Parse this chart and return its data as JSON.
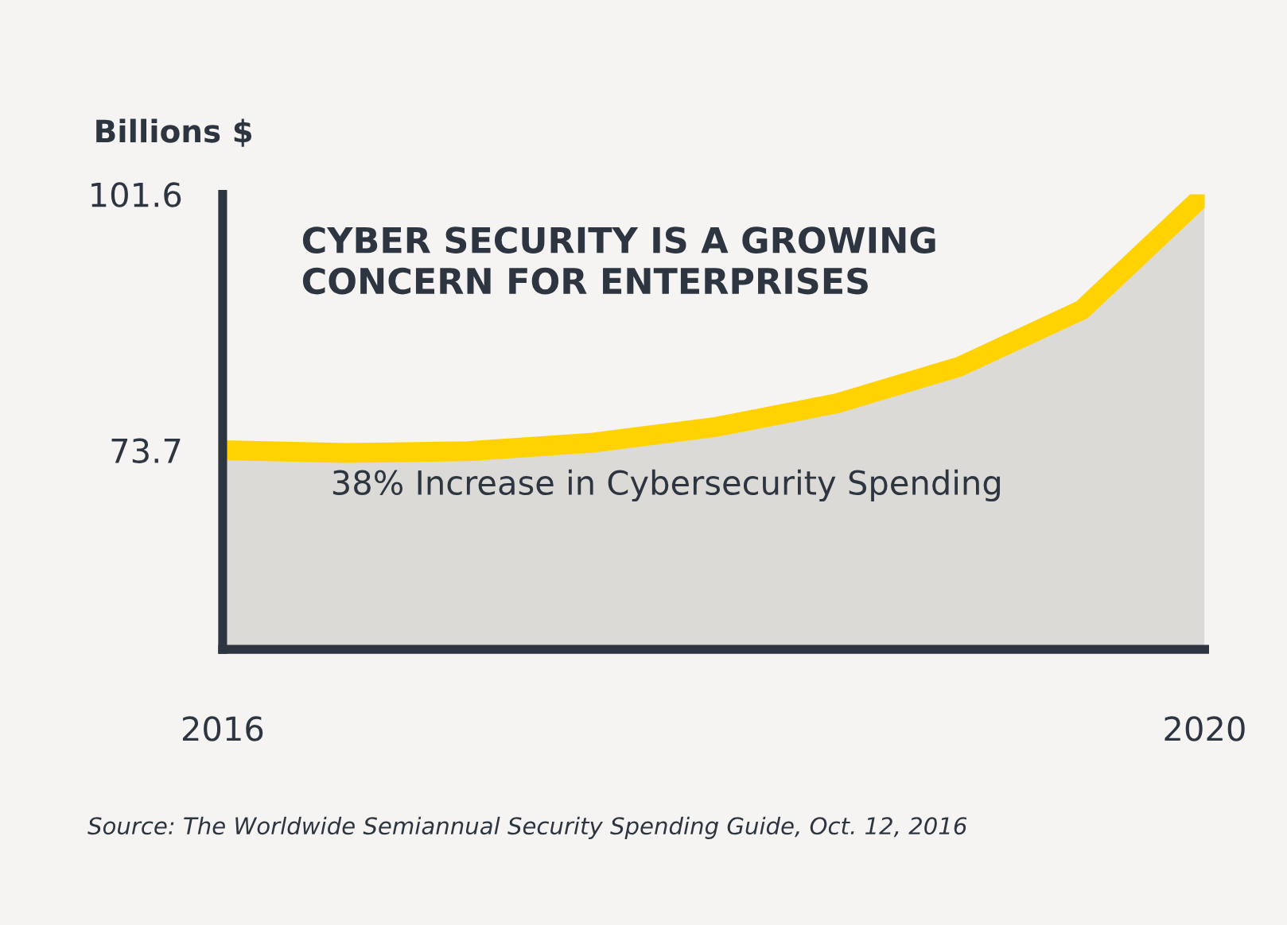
{
  "chart_data": {
    "type": "area",
    "title": "CYBER SECURITY IS A GROWING\nCONCERN FOR ENTERPRISES",
    "ylabel": "Billions $",
    "annotations": [
      "38% Increase in Cybersecurity Spending",
      "Source: The Worldwide Semiannual Security Spending Guide, Oct. 12, 2016"
    ],
    "x": [
      2016,
      2016.5,
      2017,
      2017.5,
      2018,
      2018.5,
      2019,
      2019.5,
      2020
    ],
    "series": [
      {
        "color": "#ffd200",
        "values": [
          73.7,
          73.4,
          73.6,
          74.5,
          76.2,
          78.8,
          82.8,
          89,
          101.6
        ]
      }
    ],
    "xlim": [
      2016,
      2020
    ],
    "ylim": [
      52,
      101.6
    ],
    "xticks": [
      2016,
      2020
    ],
    "yticks": [
      73.7,
      101.6
    ],
    "grid": false,
    "legend": false
  }
}
